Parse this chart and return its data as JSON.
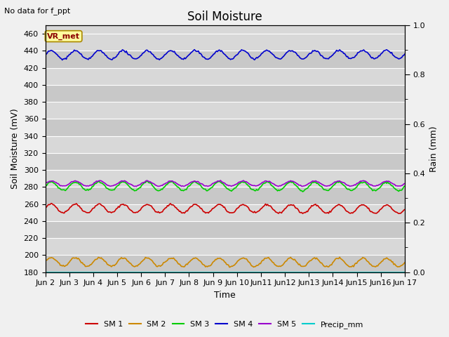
{
  "title": "Soil Moisture",
  "top_left_text": "No data for f_ppt",
  "box_label": "VR_met",
  "xlabel": "Time",
  "ylabel_left": "Soil Moisture (mV)",
  "ylabel_right": "Rain (mm)",
  "ylim_left": [
    180,
    470
  ],
  "ylim_right": [
    0.0,
    1.0
  ],
  "yticks_left": [
    180,
    200,
    220,
    240,
    260,
    280,
    300,
    320,
    340,
    360,
    380,
    400,
    420,
    440,
    460
  ],
  "yticks_right_major": [
    0.0,
    0.2,
    0.4,
    0.6,
    0.8,
    1.0
  ],
  "n_points": 360,
  "plot_bg_color": "#d8d8d8",
  "fig_bg_color": "#f0f0f0",
  "series": [
    {
      "name": "SM 1",
      "color": "#cc0000",
      "base": 255,
      "amplitude": 5,
      "period": 24,
      "trend": -0.003,
      "noise": 0.5
    },
    {
      "name": "SM 2",
      "color": "#cc8800",
      "base": 192,
      "amplitude": 5,
      "period": 24,
      "trend": -0.002,
      "noise": 0.5
    },
    {
      "name": "SM 3",
      "color": "#00cc00",
      "base": 281,
      "amplitude": 5,
      "period": 24,
      "trend": -0.001,
      "noise": 0.5
    },
    {
      "name": "SM 4",
      "color": "#0000cc",
      "base": 435,
      "amplitude": 5,
      "period": 24,
      "trend": 0.002,
      "noise": 0.5
    },
    {
      "name": "SM 5",
      "color": "#9900cc",
      "base": 284,
      "amplitude": 3,
      "period": 24,
      "trend": 0.0,
      "noise": 0.3
    },
    {
      "name": "Precip_mm",
      "color": "#00cccc",
      "base": 180,
      "amplitude": 0,
      "period": 24,
      "trend": 0.0,
      "noise": 0.0
    }
  ],
  "xtick_labels": [
    "Jun 2",
    "Jun 3",
    "Jun 4",
    "Jun 5",
    "Jun 6",
    "Jun 7",
    "Jun 8",
    "Jun 9",
    "Jun 10",
    "Jun11",
    "Jun12",
    "Jun13",
    "Jun14",
    "Jun15",
    "Jun16",
    "Jun 17"
  ],
  "xtick_positions": [
    0,
    24,
    48,
    72,
    96,
    120,
    144,
    168,
    192,
    216,
    240,
    264,
    288,
    312,
    336,
    360
  ],
  "title_fontsize": 12,
  "axis_label_fontsize": 9,
  "tick_fontsize": 8,
  "linewidth": 1.2
}
